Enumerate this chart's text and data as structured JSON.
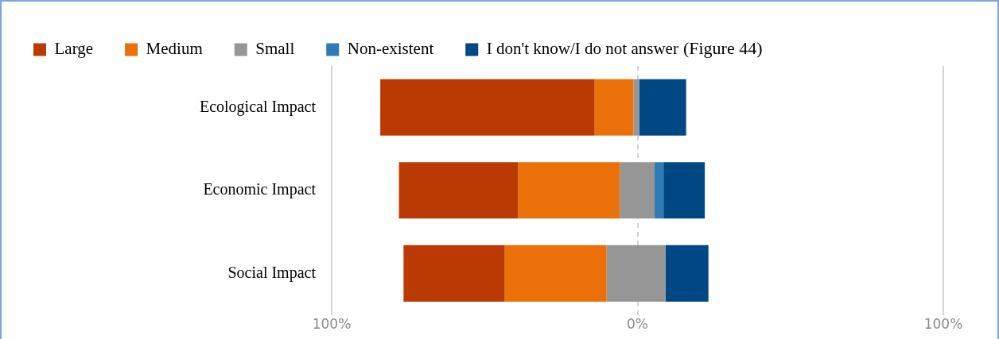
{
  "chart_data": {
    "type": "bar",
    "orientation": "horizontal",
    "categories": [
      "Ecological Impact",
      "Economic Impact",
      "Social Impact"
    ],
    "series": [
      {
        "name": "Large",
        "color": "#bb3a03",
        "base": [
          -84.1,
          -78.0,
          -76.5
        ],
        "values": [
          70.1,
          38.9,
          33.1
        ]
      },
      {
        "name": "Medium",
        "color": "#eb700a",
        "base": [
          -14.0,
          -39.1,
          -43.4
        ],
        "values": [
          12.7,
          33.3,
          33.3
        ]
      },
      {
        "name": "Small",
        "color": "#969696",
        "base": [
          -1.3,
          -5.8,
          -10.1
        ],
        "values": [
          1.9,
          11.4,
          19.3
        ]
      },
      {
        "name": "Non-existent",
        "color": "#2e7cb5",
        "base": [
          null,
          5.6,
          null
        ],
        "values": [
          null,
          2.9,
          null
        ]
      },
      {
        "name": "I don't know/I do not answer",
        "color": "#004883",
        "base": [
          0.6,
          8.5,
          9.2
        ],
        "values": [
          15.3,
          13.5,
          14.0
        ]
      }
    ],
    "xlim": [
      -100,
      100
    ],
    "xticks": [
      {
        "value": -100,
        "label": "100%"
      },
      {
        "value": 0,
        "label": "0%"
      },
      {
        "value": 100,
        "label": "100%"
      }
    ],
    "grid": "x",
    "legend": "top",
    "annotations": [
      "(Figure 44)"
    ]
  }
}
